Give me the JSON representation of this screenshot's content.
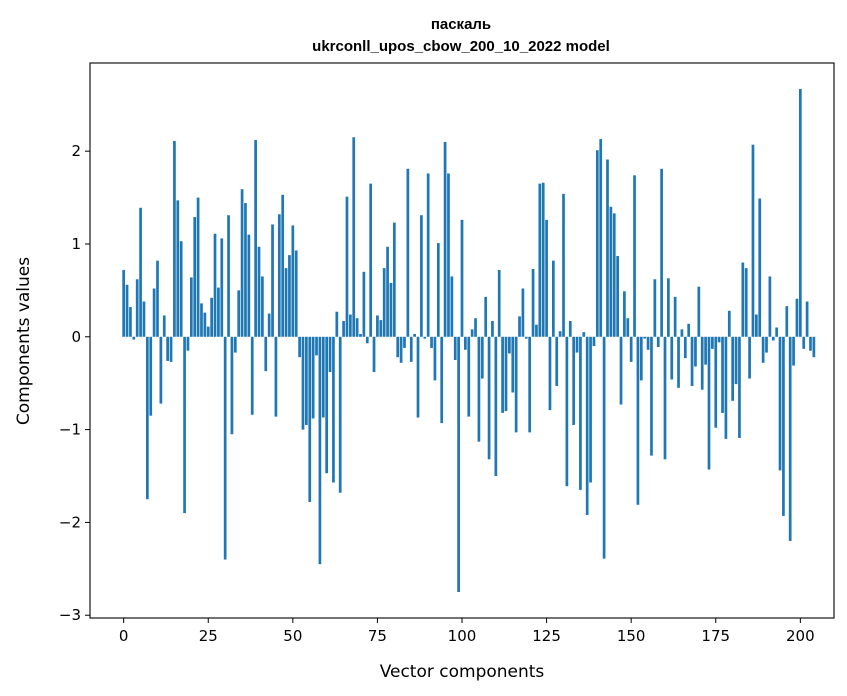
{
  "chart_data": {
    "type": "bar",
    "title": "паскаль",
    "subtitle": "ukrconll_upos_cbow_200_10_2022 model",
    "xlabel": "Vector components",
    "ylabel": "Components values",
    "xlim": [
      -9.95,
      209.95
    ],
    "ylim": [
      -3.03,
      2.95
    ],
    "xticks": [
      0,
      25,
      50,
      75,
      100,
      125,
      150,
      175,
      200
    ],
    "xtick_labels": [
      "0",
      "25",
      "50",
      "75",
      "100",
      "125",
      "150",
      "175",
      "200"
    ],
    "yticks": [
      -3,
      -2,
      -1,
      0,
      1,
      2
    ],
    "ytick_labels": [
      "−3",
      "−2",
      "−1",
      "0",
      "1",
      "2"
    ],
    "grid": false,
    "legend": "none",
    "bar_color": "#1f77b4",
    "values": [
      0.72,
      0.56,
      0.32,
      -0.03,
      0.62,
      1.39,
      0.38,
      -1.75,
      -0.85,
      0.52,
      0.82,
      -0.72,
      0.23,
      -0.26,
      -0.27,
      2.11,
      1.47,
      1.03,
      -1.9,
      -0.15,
      0.64,
      1.29,
      1.5,
      0.36,
      0.26,
      0.11,
      0.42,
      1.11,
      0.53,
      1.06,
      -2.4,
      1.31,
      -1.05,
      -0.17,
      0.5,
      1.59,
      1.44,
      1.1,
      -0.84,
      2.12,
      0.97,
      0.65,
      -0.37,
      0.25,
      1.21,
      -0.86,
      1.32,
      1.53,
      0.74,
      0.88,
      1.2,
      0.93,
      -0.22,
      -1.0,
      -0.95,
      -1.78,
      -0.88,
      -0.2,
      -2.45,
      -0.87,
      -1.47,
      -0.38,
      -1.57,
      0.27,
      -1.68,
      0.17,
      1.51,
      0.24,
      2.15,
      0.2,
      0.03,
      0.7,
      -0.07,
      1.65,
      -0.38,
      0.23,
      0.18,
      0.74,
      0.97,
      0.58,
      1.23,
      -0.22,
      -0.28,
      -0.12,
      1.81,
      -0.27,
      0.03,
      -0.87,
      1.31,
      -0.02,
      1.76,
      -0.12,
      -0.47,
      1.01,
      -0.93,
      2.1,
      1.76,
      0.65,
      -0.25,
      -2.75,
      1.26,
      -0.14,
      -0.86,
      0.08,
      0.2,
      -1.13,
      -0.45,
      0.43,
      -1.32,
      0.17,
      -1.5,
      0.72,
      -0.82,
      -0.8,
      -0.18,
      -0.6,
      -1.03,
      0.22,
      0.52,
      -0.02,
      -1.03,
      0.73,
      0.13,
      1.65,
      1.66,
      1.26,
      -0.79,
      0.82,
      -0.53,
      0.06,
      1.54,
      -1.61,
      0.17,
      -0.95,
      -0.17,
      -1.65,
      0.05,
      -1.92,
      -1.57,
      -0.1,
      2.01,
      2.13,
      -2.39,
      1.91,
      1.4,
      1.33,
      0.87,
      -0.73,
      0.49,
      0.2,
      -0.27,
      1.74,
      -1.81,
      -0.47,
      -0.02,
      -0.14,
      -1.28,
      0.62,
      -0.11,
      1.81,
      -1.32,
      0.63,
      -0.46,
      0.43,
      -0.55,
      0.08,
      -0.23,
      0.14,
      -0.53,
      -0.32,
      0.54,
      -0.57,
      -0.3,
      -1.43,
      -0.13,
      -0.98,
      -0.06,
      -0.82,
      -1.1,
      0.28,
      -0.69,
      -0.51,
      -1.09,
      0.8,
      0.74,
      -0.45,
      2.07,
      0.24,
      1.49,
      -0.28,
      -0.17,
      0.65,
      -0.04,
      0.1,
      -1.44,
      -1.93,
      0.33,
      -2.2,
      -0.31,
      0.41,
      2.67,
      -0.13,
      0.38,
      -0.15,
      -0.22
    ]
  }
}
